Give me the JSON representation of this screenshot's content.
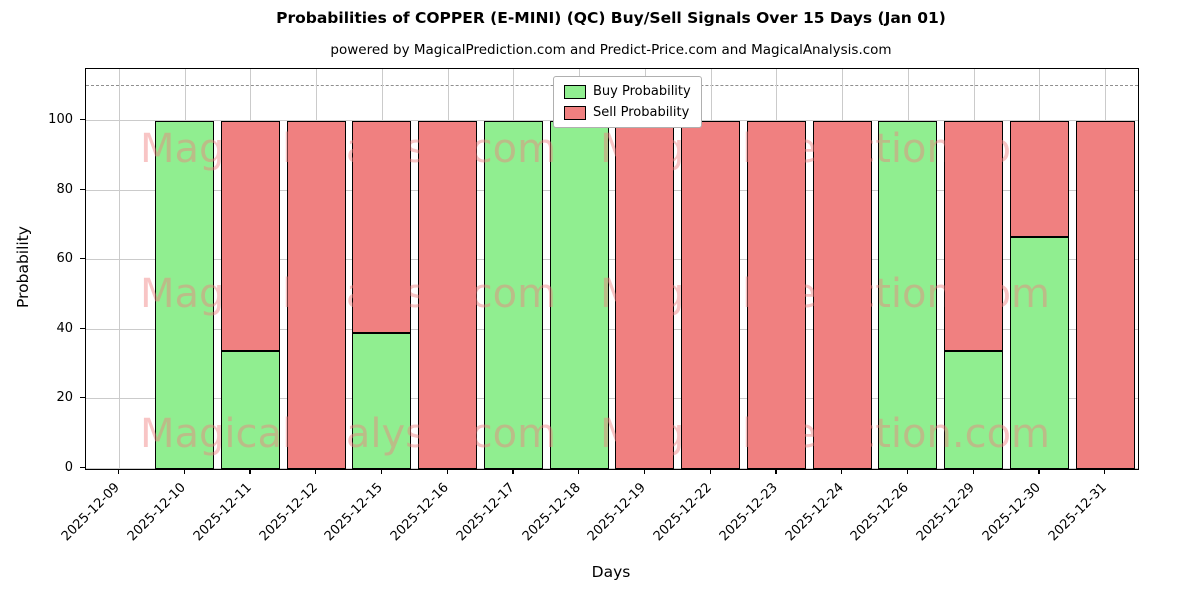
{
  "title": "Probabilities of COPPER (E-MINI) (QC) Buy/Sell Signals Over 15 Days (Jan 01)",
  "subtitle": "powered by MagicalPrediction.com and Predict-Price.com and MagicalAnalysis.com",
  "chart_data": {
    "type": "bar",
    "stacked": true,
    "title": "Probabilities of COPPER (E-MINI) (QC) Buy/Sell Signals Over 15 Days (Jan 01)",
    "subtitle": "powered by MagicalPrediction.com and Predict-Price.com and MagicalAnalysis.com",
    "xlabel": "Days",
    "ylabel": "Probability",
    "ylim": [
      0,
      115
    ],
    "yticks": [
      0,
      20,
      40,
      60,
      80,
      100
    ],
    "dashed_guideline_y": 110,
    "grid": true,
    "legend_position": "top-center",
    "categories": [
      "2025-12-09",
      "2025-12-10",
      "2025-12-11",
      "2025-12-12",
      "2025-12-15",
      "2025-12-16",
      "2025-12-17",
      "2025-12-18",
      "2025-12-19",
      "2025-12-22",
      "2025-12-23",
      "2025-12-24",
      "2025-12-26",
      "2025-12-29",
      "2025-12-30",
      "2025-12-31"
    ],
    "series": [
      {
        "name": "Buy Probability",
        "color": "#90EE90",
        "values": [
          null,
          100,
          34,
          0,
          39,
          0,
          100,
          100,
          0,
          0,
          0,
          0,
          100,
          34,
          66.7,
          0
        ]
      },
      {
        "name": "Sell Probability",
        "color": "#F08080",
        "values": [
          null,
          0,
          66,
          100,
          61,
          100,
          0,
          0,
          100,
          100,
          100,
          100,
          0,
          66,
          33.3,
          100
        ]
      }
    ],
    "legend": {
      "entries": [
        {
          "label": "Buy Probability",
          "color": "#90EE90"
        },
        {
          "label": "Sell Probability",
          "color": "#F08080"
        }
      ]
    },
    "watermarks": {
      "left_text": "MagicalAnalysis.com",
      "right_text": "MagicalPrediction.com",
      "color": "#f08080"
    }
  }
}
